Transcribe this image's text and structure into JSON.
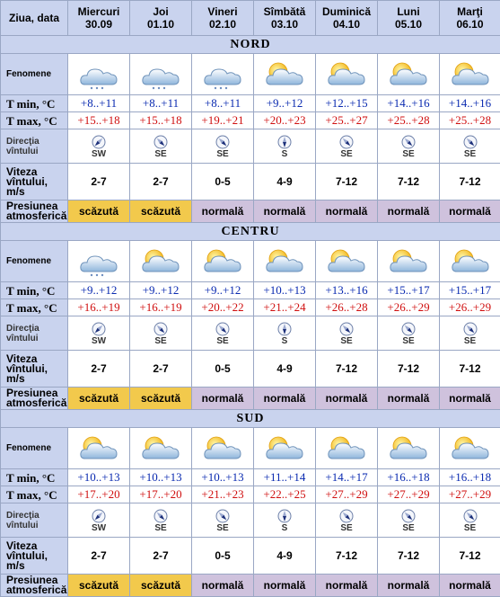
{
  "header": {
    "corner": "Ziua, data",
    "days": [
      {
        "name": "Miercuri",
        "date": "30.09"
      },
      {
        "name": "Joi",
        "date": "01.10"
      },
      {
        "name": "Vineri",
        "date": "02.10"
      },
      {
        "name": "Sîmbătă",
        "date": "03.10"
      },
      {
        "name": "Duminică",
        "date": "04.10"
      },
      {
        "name": "Luni",
        "date": "05.10"
      },
      {
        "name": "Marţi",
        "date": "06.10"
      }
    ]
  },
  "labels": {
    "fenomene": "Fenomene",
    "tmin": "T min, °C",
    "tmax": "T max, °C",
    "directia": "Direcţia vîntului",
    "viteza": "Viteza vîntului, m/s",
    "presiunea": "Presiunea atmosferică"
  },
  "colors": {
    "header_bg": "#c9d3ee",
    "tmin_text": "#0a2ab0",
    "tmax_text": "#d01010",
    "pressure_low": "#f2c94c",
    "pressure_normal": "#cfc2dd"
  },
  "regions": [
    {
      "name": "NORD",
      "icons": [
        "snow-cloud-icon",
        "snow-cloud-icon",
        "snow-cloud-icon",
        "sun-cloud-icon",
        "sun-cloud-icon",
        "sun-cloud-icon",
        "sun-cloud-icon"
      ],
      "tmin": [
        "+8..+11",
        "+8..+11",
        "+8..+11",
        "+9..+12",
        "+12..+15",
        "+14..+16",
        "+14..+16"
      ],
      "tmax": [
        "+15..+18",
        "+15..+18",
        "+19..+21",
        "+20..+23",
        "+25..+27",
        "+25..+28",
        "+25..+28"
      ],
      "wind_dir": [
        "SW",
        "SE",
        "SE",
        "S",
        "SE",
        "SE",
        "SE"
      ],
      "wind_speed": [
        "2-7",
        "2-7",
        "0-5",
        "4-9",
        "7-12",
        "7-12",
        "7-12"
      ],
      "pressure": [
        "scăzută",
        "scăzută",
        "normală",
        "normală",
        "normală",
        "normală",
        "normală"
      ]
    },
    {
      "name": "CENTRU",
      "icons": [
        "snow-cloud-icon",
        "sun-cloud-icon",
        "sun-cloud-icon",
        "sun-cloud-icon",
        "sun-cloud-icon",
        "sun-cloud-icon",
        "sun-cloud-icon"
      ],
      "tmin": [
        "+9..+12",
        "+9..+12",
        "+9..+12",
        "+10..+13",
        "+13..+16",
        "+15..+17",
        "+15..+17"
      ],
      "tmax": [
        "+16..+19",
        "+16..+19",
        "+20..+22",
        "+21..+24",
        "+26..+28",
        "+26..+29",
        "+26..+29"
      ],
      "wind_dir": [
        "SW",
        "SE",
        "SE",
        "S",
        "SE",
        "SE",
        "SE"
      ],
      "wind_speed": [
        "2-7",
        "2-7",
        "0-5",
        "4-9",
        "7-12",
        "7-12",
        "7-12"
      ],
      "pressure": [
        "scăzută",
        "scăzută",
        "normală",
        "normală",
        "normală",
        "normală",
        "normală"
      ]
    },
    {
      "name": "SUD",
      "icons": [
        "sun-cloud-icon",
        "sun-cloud-icon",
        "sun-cloud-icon",
        "sun-cloud-icon",
        "sun-cloud-icon",
        "sun-cloud-icon",
        "sun-cloud-icon"
      ],
      "tmin": [
        "+10..+13",
        "+10..+13",
        "+10..+13",
        "+11..+14",
        "+14..+17",
        "+16..+18",
        "+16..+18"
      ],
      "tmax": [
        "+17..+20",
        "+17..+20",
        "+21..+23",
        "+22..+25",
        "+27..+29",
        "+27..+29",
        "+27..+29"
      ],
      "wind_dir": [
        "SW",
        "SE",
        "SE",
        "S",
        "SE",
        "SE",
        "SE"
      ],
      "wind_speed": [
        "2-7",
        "2-7",
        "0-5",
        "4-9",
        "7-12",
        "7-12",
        "7-12"
      ],
      "pressure": [
        "scăzută",
        "scăzută",
        "normală",
        "normală",
        "normală",
        "normală",
        "normală"
      ]
    }
  ]
}
